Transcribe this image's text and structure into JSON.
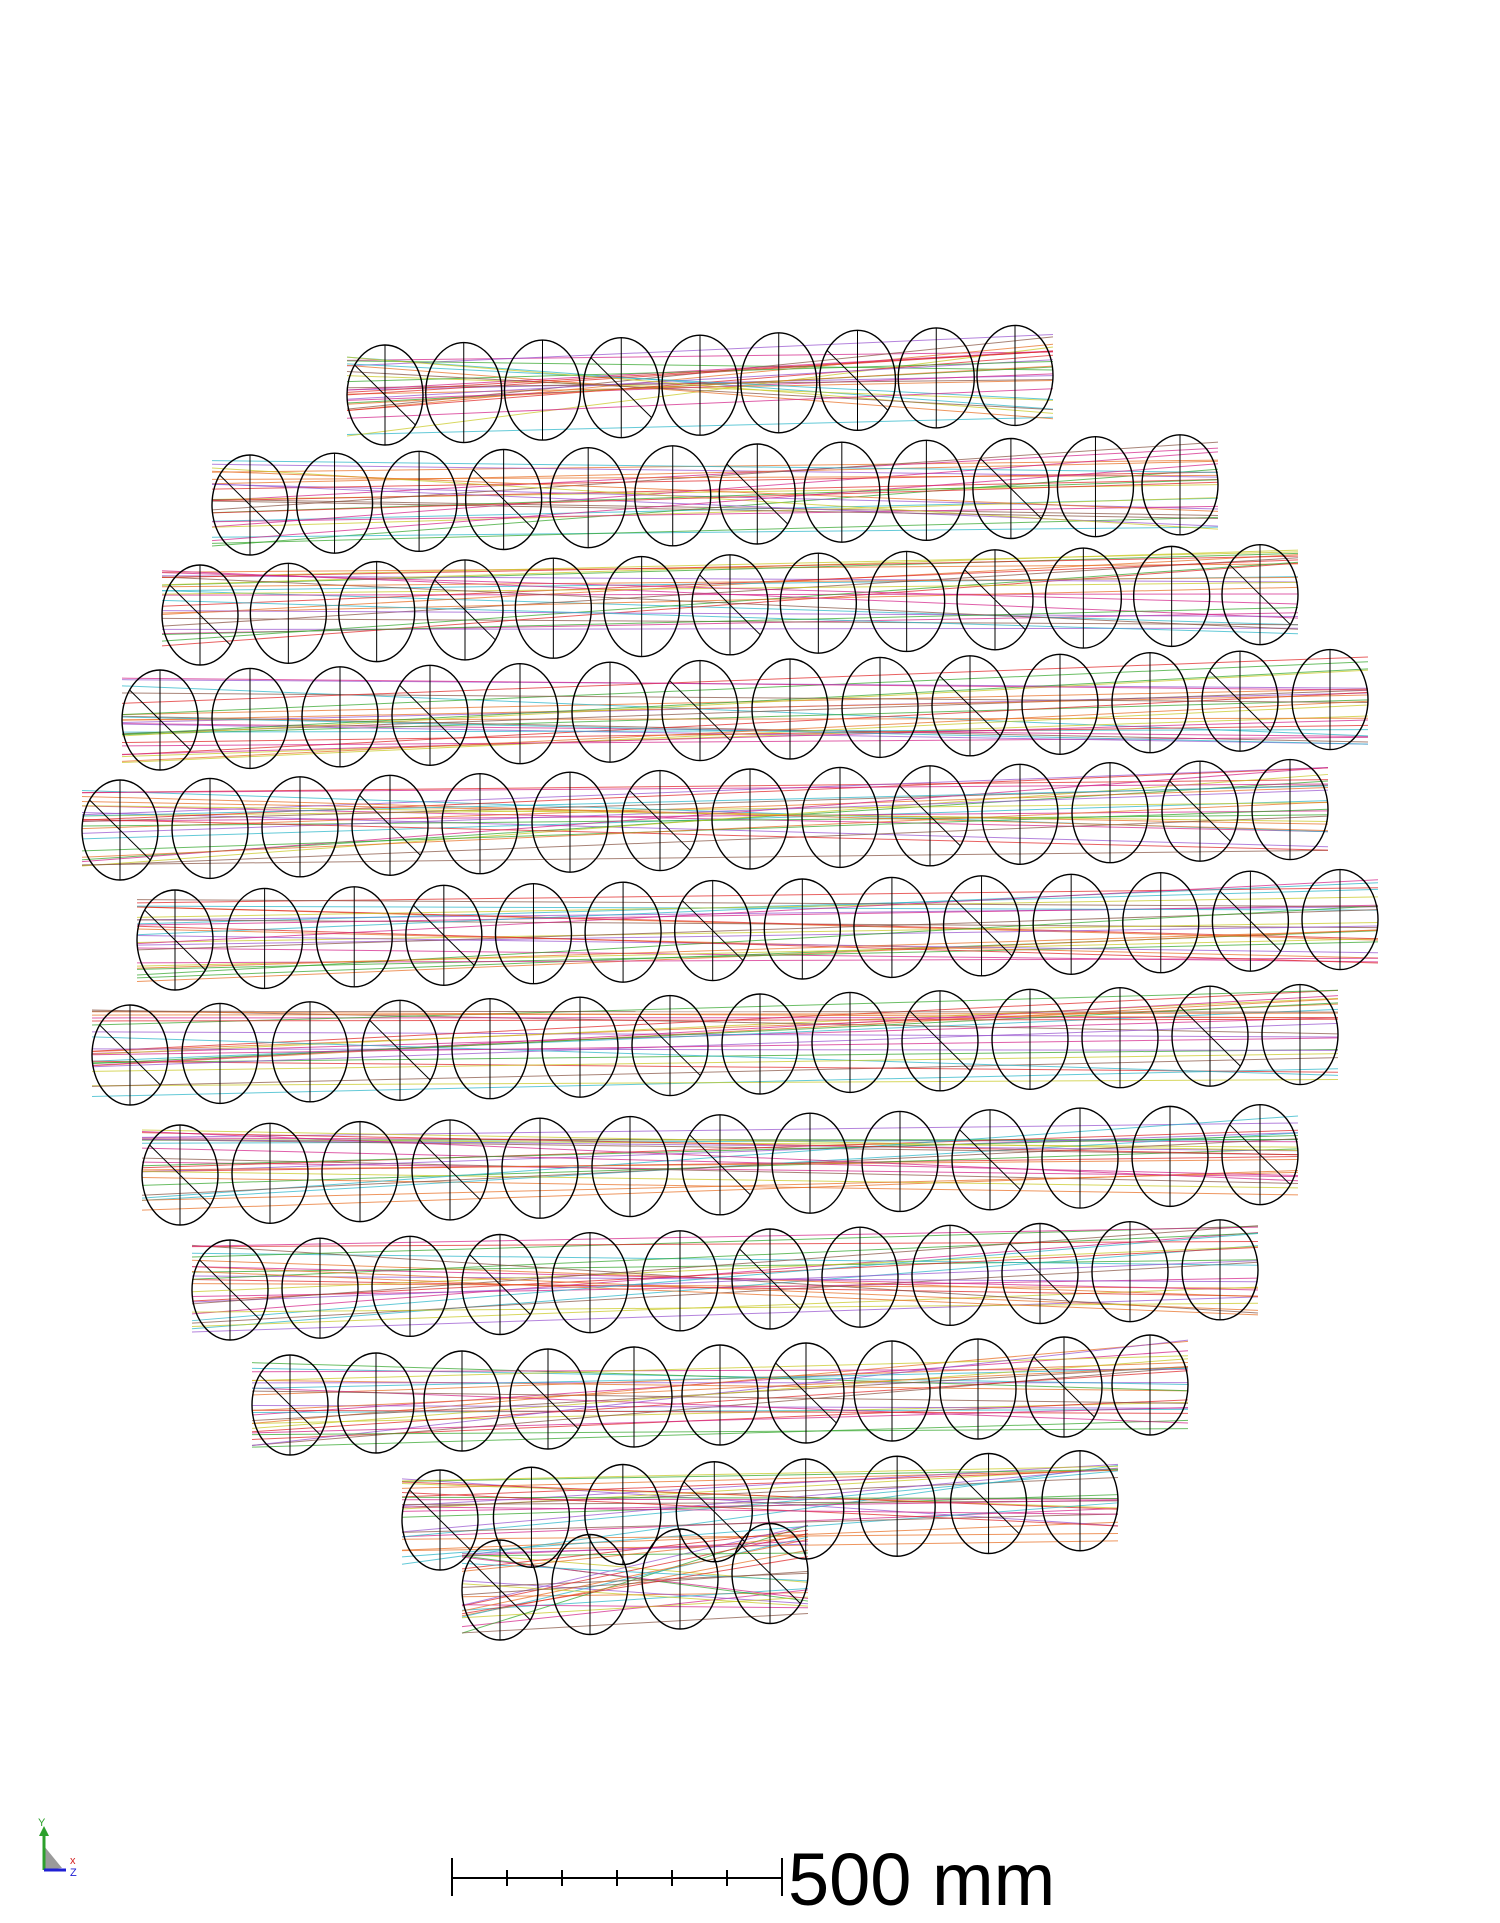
{
  "view": {
    "title": "",
    "colors": {
      "lens_outline": "#000000",
      "background": "#ffffff",
      "ray_colors": [
        "#e8732a",
        "#d42a8c",
        "#9b59d0",
        "#2fb7c9",
        "#3aa832",
        "#c9c92a",
        "#8b5a4a",
        "#e02c2c"
      ]
    },
    "element_icon": "lens-barrel-icon"
  },
  "scale_bar": {
    "label": "500 mm",
    "ticks": 6
  },
  "axis_triad": {
    "x_label": "x",
    "y_label": "Y",
    "z_label": "Z",
    "colors": {
      "x": "#d42020",
      "y": "#2ca02c",
      "z": "#2020d4"
    }
  }
}
